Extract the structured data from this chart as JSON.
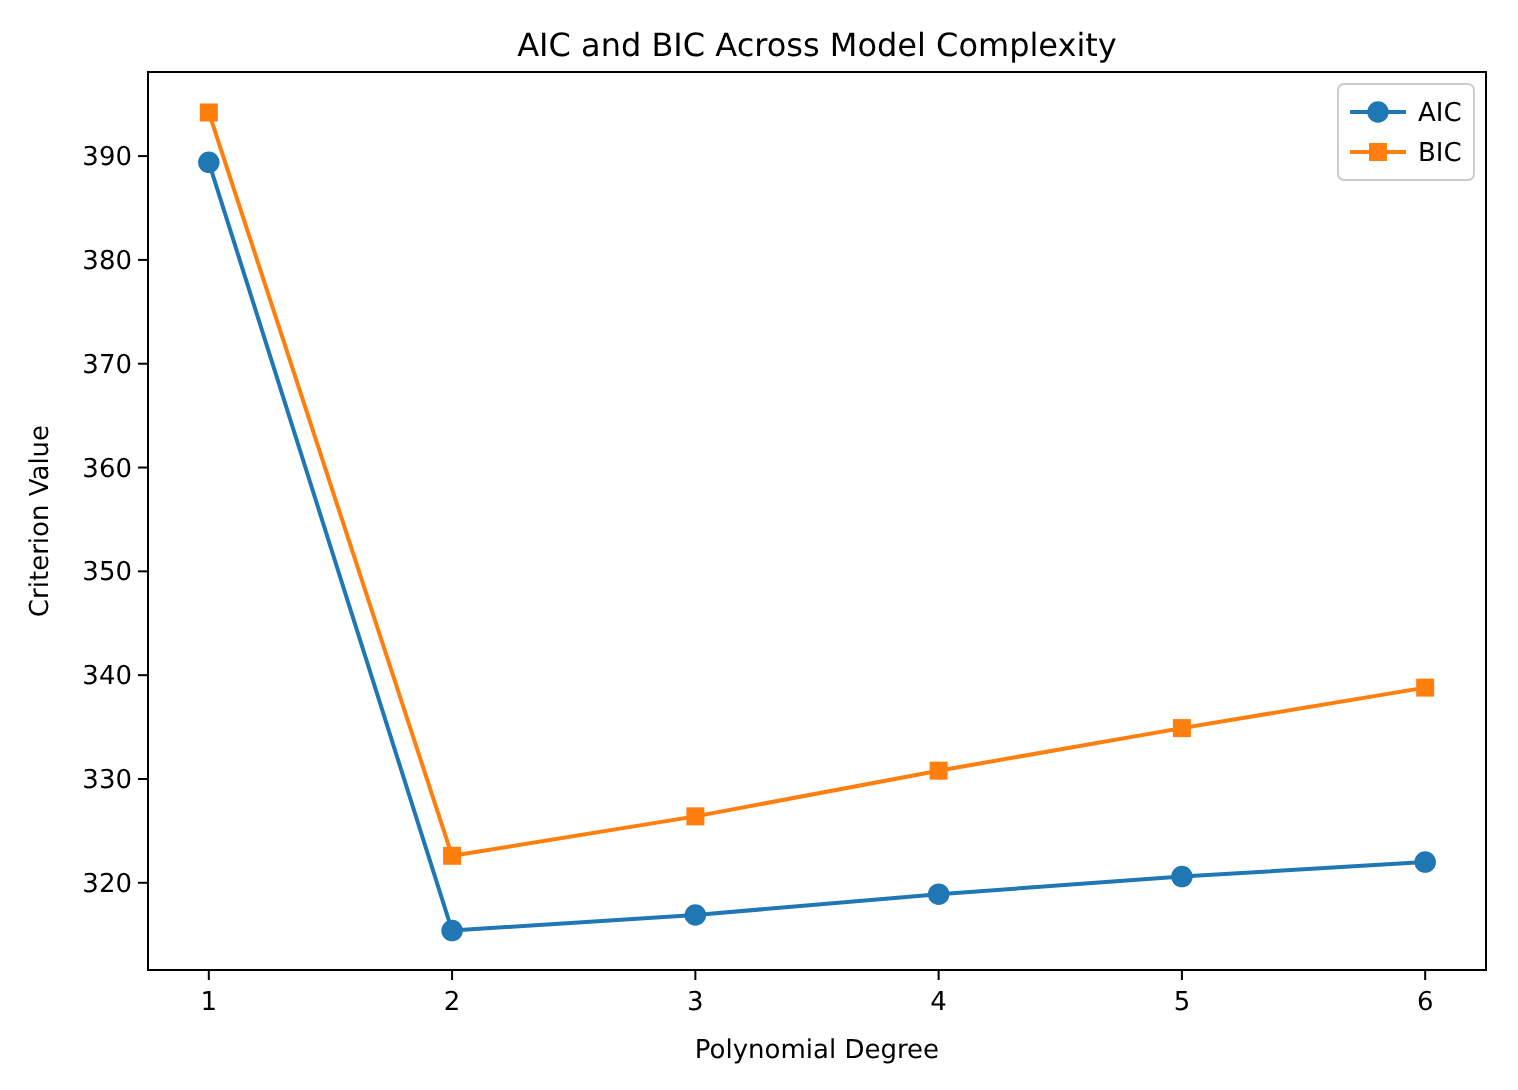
{
  "chart_data": {
    "type": "line",
    "title": "AIC and BIC Across Model Complexity",
    "xlabel": "Polynomial Degree",
    "ylabel": "Criterion Value",
    "x": [
      1,
      2,
      3,
      4,
      5,
      6
    ],
    "series": [
      {
        "name": "AIC",
        "color": "#1f77b4",
        "marker": "circle",
        "values": [
          389.4,
          315.4,
          316.9,
          318.9,
          320.6,
          322.0
        ]
      },
      {
        "name": "BIC",
        "color": "#ff7f0e",
        "marker": "square",
        "values": [
          394.2,
          322.6,
          326.4,
          330.8,
          334.9,
          338.8
        ]
      }
    ],
    "xlim": [
      0.75,
      6.25
    ],
    "xticks": [
      1,
      2,
      3,
      4,
      5,
      6
    ],
    "ylim": [
      311.6,
      398.1
    ],
    "yticks": [
      320,
      330,
      340,
      350,
      360,
      370,
      380,
      390
    ],
    "grid": false,
    "legend": "top right",
    "line_style": "solid"
  }
}
